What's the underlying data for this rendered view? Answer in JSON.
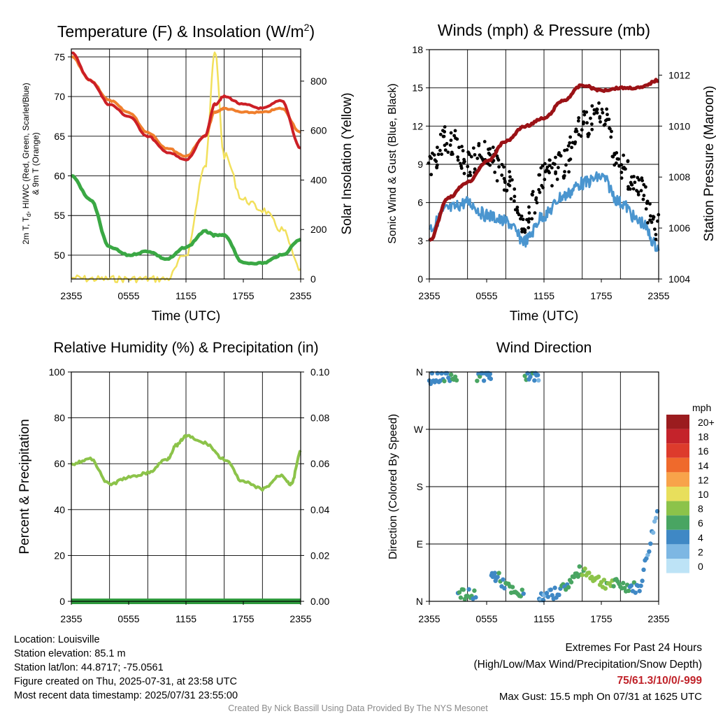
{
  "time_ticks": [
    "2355",
    "0555",
    "1155",
    "1755",
    "2355"
  ],
  "panels": {
    "temperature": {
      "title_pre": "Temperature (F) & Insolation (W/m",
      "title_sup": "2",
      "title_post": ")",
      "xlabel": "Time (UTC)",
      "ylabel_line1": "2m T, T",
      "ylabel_sub": "d",
      "ylabel_line1_post": ", HI/WC (Red, Green, Scarlet/Blue)",
      "ylabel_line2": "& 9m T (Orange)",
      "ylabel_right": "Solar Insolation (Yellow)",
      "y_ticks": [
        "50",
        "55",
        "60",
        "65",
        "70",
        "75"
      ],
      "y_right_ticks": [
        "0",
        "200",
        "400",
        "600",
        "800"
      ]
    },
    "winds": {
      "title": "Winds (mph) & Pressure (mb)",
      "xlabel": "Time (UTC)",
      "ylabel": "Sonic Wind & Gust (Blue, Black)",
      "ylabel_right": "Station Pressure (Maroon)",
      "y_ticks": [
        "0",
        "3",
        "6",
        "9",
        "12",
        "15",
        "18"
      ],
      "y_right_ticks": [
        "1004",
        "1006",
        "1008",
        "1010",
        "1012"
      ]
    },
    "humidity": {
      "title": "Relative Humidity (%) & Precipitation (in)",
      "ylabel": "Percent & Precipitation",
      "y_ticks": [
        "0",
        "20",
        "40",
        "60",
        "80",
        "100"
      ],
      "y_right_ticks": [
        "0.00",
        "0.02",
        "0.04",
        "0.06",
        "0.08",
        "0.10"
      ]
    },
    "direction": {
      "title": "Wind Direction",
      "ylabel": "Direction (Colored By Speed)",
      "y_ticks": [
        "N",
        "E",
        "S",
        "W",
        "N"
      ],
      "legend_title": "mph",
      "legend_labels": [
        "20+",
        "18",
        "16",
        "14",
        "12",
        "10",
        "8",
        "6",
        "4",
        "2",
        "0"
      ],
      "legend_colors": [
        "#9b1c1f",
        "#c4232b",
        "#dd3b2c",
        "#ef6a2c",
        "#f8a34a",
        "#e8df5c",
        "#8cc34a",
        "#49a562",
        "#3f88c5",
        "#7db7e3",
        "#bde3f6"
      ]
    }
  },
  "colors": {
    "temp_2m": "#cc1f26",
    "temp_9m": "#f07f2d",
    "dewpoint": "#3aa844",
    "solar": "#f2e05c",
    "wind": "#4a95cf",
    "gust": "#000000",
    "pressure": "#9b1216",
    "rh": "#8cc34a",
    "precip": "#2f9a3e"
  },
  "chart_data": [
    {
      "type": "line",
      "panel": "temperature",
      "x": [
        "2355",
        "0155",
        "0355",
        "0555",
        "0755",
        "0955",
        "1155",
        "1355",
        "1455",
        "1555",
        "1755",
        "1955",
        "2155",
        "2355"
      ],
      "series": [
        {
          "name": "2m T",
          "axis": "left",
          "values": [
            75.5,
            72,
            69,
            67.5,
            65,
            63,
            62,
            65,
            69,
            70,
            69,
            68.5,
            69.5,
            63.5
          ]
        },
        {
          "name": "9m T",
          "axis": "left",
          "values": [
            75,
            72,
            69.5,
            68,
            65.5,
            63.5,
            62.5,
            65,
            68,
            68.5,
            68,
            68,
            68.5,
            65.5
          ]
        },
        {
          "name": "Td",
          "axis": "left",
          "values": [
            60,
            57,
            51,
            50,
            50.5,
            49.5,
            51,
            53,
            52.5,
            52.5,
            49,
            49,
            50,
            52
          ]
        },
        {
          "name": "Solar Insolation",
          "axis": "right",
          "values": [
            5,
            0,
            0,
            0,
            0,
            0,
            100,
            450,
            920,
            500,
            320,
            280,
            200,
            40
          ]
        }
      ],
      "ylim": [
        47,
        76
      ],
      "y_right_lim": [
        0,
        930
      ]
    },
    {
      "type": "line",
      "panel": "winds",
      "x": [
        "2355",
        "0155",
        "0355",
        "0555",
        "0755",
        "0955",
        "1155",
        "1355",
        "1555",
        "1755",
        "1955",
        "2155",
        "2355"
      ],
      "series": [
        {
          "name": "Sonic Wind",
          "axis": "left",
          "values": [
            4,
            5.5,
            6,
            5,
            4.5,
            3,
            5,
            6.5,
            7.5,
            8,
            6,
            4.5,
            2.5
          ]
        },
        {
          "name": "Gust",
          "axis": "left",
          "values": [
            9,
            11,
            9,
            10,
            8,
            4.5,
            8,
            9,
            12,
            13,
            9,
            7,
            4
          ]
        },
        {
          "name": "Station Pressure",
          "axis": "right",
          "values": [
            1005.5,
            1007.2,
            1007.8,
            1008.6,
            1009.4,
            1010,
            1010.3,
            1011,
            1011.6,
            1011.4,
            1011.5,
            1011.5,
            1011.8
          ]
        }
      ],
      "ylim": [
        0,
        18
      ],
      "y_right_lim": [
        1004,
        1013
      ]
    },
    {
      "type": "line",
      "panel": "humidity",
      "x": [
        "2355",
        "0155",
        "0355",
        "0555",
        "0755",
        "0955",
        "1055",
        "1155",
        "1355",
        "1555",
        "1755",
        "1955",
        "2155",
        "2255",
        "2355"
      ],
      "series": [
        {
          "name": "RH",
          "axis": "left",
          "values": [
            60,
            62,
            51,
            54,
            56,
            62,
            68,
            72,
            69,
            62,
            52,
            49,
            55,
            51,
            65
          ]
        },
        {
          "name": "Precipitation",
          "axis": "right",
          "values": [
            0,
            0,
            0,
            0,
            0,
            0,
            0,
            0,
            0,
            0,
            0,
            0,
            0,
            0,
            0
          ]
        }
      ],
      "ylim": [
        0,
        100
      ],
      "y_right_lim": [
        0,
        0.1
      ]
    },
    {
      "type": "scatter",
      "panel": "direction",
      "x": [
        "2355",
        "0155",
        "0355",
        "0555",
        "0655",
        "0855",
        "1055",
        "1155",
        "1355",
        "1555",
        "1755",
        "1955",
        "2155",
        "2355"
      ],
      "series": [
        {
          "name": "Direction (deg)",
          "values": [
            350,
            355,
            10,
            355,
            40,
            10,
            355,
            5,
            20,
            50,
            30,
            25,
            20,
            150
          ]
        },
        {
          "name": "Speed (mph)",
          "values": [
            4,
            5,
            6,
            4,
            4,
            6,
            4,
            3,
            5,
            7,
            8,
            6,
            4,
            2
          ]
        }
      ],
      "ylim": [
        0,
        360
      ]
    }
  ],
  "footer_left": {
    "location": "Location: Louisville",
    "elevation": "Station elevation: 85.1 m",
    "latlon": "Station lat/lon: 44.8717; -75.0561",
    "created": "Figure created on Thu, 2025-07-31, at 23:58 UTC",
    "recent": "Most recent data timestamp: 2025/07/31 23:55:00"
  },
  "footer_right": {
    "extremes_title": "Extremes For Past 24 Hours",
    "extremes_subtitle": "(High/Low/Max Wind/Precipitation/Snow Depth)",
    "extremes_values": "75/61.3/10/0/-999",
    "max_gust": "Max Gust: 15.5 mph On 07/31 at 1625 UTC"
  },
  "credit": "Created By Nick Bassill Using Data Provided By The NYS Mesonet"
}
